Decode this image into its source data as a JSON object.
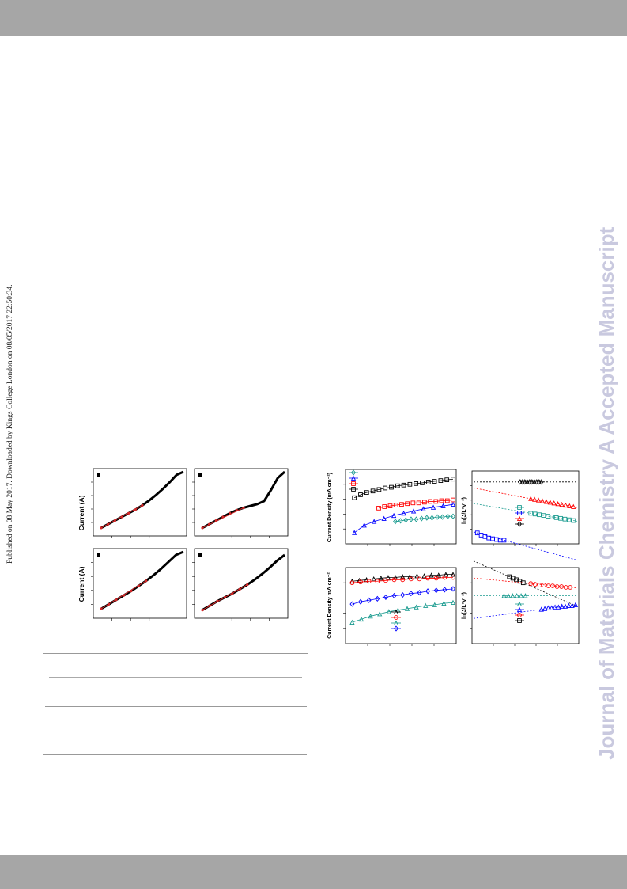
{
  "watermark": "Journal of Materials Chemistry A Accepted Manuscript",
  "published_note": "Published on 08 May 2017. Downloaded by Kings College London on 08/05/2017 22:50:34.",
  "colors": {
    "bar": "#a6a6a6",
    "watermark": "#c9c9df",
    "fit_line": "#d62728",
    "black": "#000000",
    "red": "#ff0000",
    "blue": "#0000ff",
    "teal": "#1a9b8f"
  },
  "left_panel": {
    "ylabel_top": "Current (A)",
    "ylabel_bottom": "Current (A)"
  },
  "right_panel": {
    "ylabel_top_left": "Current Density (mA cm⁻²)",
    "ylabel_bottom_left": "Current Density mA cm⁻²",
    "ylabel_right": "ln(J/L³V⁻²)"
  },
  "chart_data": [
    {
      "type": "line",
      "panel": "a-top-left",
      "series": [
        {
          "values": [
            0.08,
            0.14,
            0.2,
            0.26,
            0.32,
            0.38,
            0.45,
            0.53,
            0.62,
            0.72,
            0.83,
            0.95,
            1.0
          ]
        }
      ]
    },
    {
      "type": "line",
      "panel": "a-top-right",
      "series": [
        {
          "values": [
            0.08,
            0.14,
            0.2,
            0.26,
            0.32,
            0.37,
            0.41,
            0.44,
            0.47,
            0.52,
            0.7,
            0.9,
            1.0
          ]
        }
      ]
    },
    {
      "type": "line",
      "panel": "a-bottom-left",
      "series": [
        {
          "values": [
            0.1,
            0.17,
            0.24,
            0.31,
            0.38,
            0.46,
            0.54,
            0.63,
            0.73,
            0.84,
            0.95,
            1.0
          ]
        }
      ]
    },
    {
      "type": "line",
      "panel": "a-bottom-right",
      "series": [
        {
          "values": [
            0.08,
            0.15,
            0.22,
            0.28,
            0.34,
            0.41,
            0.48,
            0.56,
            0.65,
            0.75,
            0.86,
            0.95
          ]
        }
      ]
    },
    {
      "type": "scatter",
      "panel": "b-top-left",
      "series": [
        {
          "color": "black",
          "values": [
            0.62,
            0.66,
            0.69,
            0.71,
            0.73,
            0.75,
            0.76,
            0.78,
            0.79,
            0.8,
            0.81,
            0.82,
            0.83,
            0.84,
            0.85,
            0.86,
            0.87
          ]
        },
        {
          "color": "red",
          "values": [
            0.48,
            0.5,
            0.51,
            0.52,
            0.53,
            0.54,
            0.55,
            0.55,
            0.56,
            0.57,
            0.57,
            0.58,
            0.58,
            0.59
          ]
        },
        {
          "color": "blue",
          "values": [
            0.15,
            0.25,
            0.3,
            0.34,
            0.38,
            0.41,
            0.44,
            0.47,
            0.49,
            0.51,
            0.53
          ]
        },
        {
          "color": "teal",
          "values": [
            0.3,
            0.31,
            0.32,
            0.33,
            0.33,
            0.34,
            0.35,
            0.35,
            0.36,
            0.36,
            0.37,
            0.37
          ]
        }
      ]
    },
    {
      "type": "scatter",
      "panel": "b-top-right",
      "series": [
        {
          "color": "black",
          "values": [
            0.85,
            0.85,
            0.85,
            0.85,
            0.85,
            0.85,
            0.85,
            0.85,
            0.85,
            0.85
          ]
        },
        {
          "color": "red",
          "values": [
            0.62,
            0.61,
            0.6,
            0.59,
            0.58,
            0.57,
            0.56,
            0.55,
            0.54,
            0.53,
            0.52,
            0.51
          ]
        },
        {
          "color": "teal",
          "values": [
            0.42,
            0.41,
            0.4,
            0.39,
            0.38,
            0.37,
            0.36,
            0.35,
            0.34,
            0.33,
            0.32
          ]
        },
        {
          "color": "blue",
          "values": [
            0.15,
            0.12,
            0.1,
            0.08,
            0.07,
            0.06,
            0.05,
            0.05
          ]
        }
      ]
    },
    {
      "type": "scatter",
      "panel": "b-bottom-left",
      "series": [
        {
          "color": "black",
          "values": [
            0.82,
            0.83,
            0.84,
            0.85,
            0.86,
            0.87,
            0.87,
            0.88,
            0.88,
            0.89,
            0.89,
            0.9,
            0.9,
            0.91,
            0.91
          ]
        },
        {
          "color": "red",
          "values": [
            0.8,
            0.81,
            0.82,
            0.82,
            0.83,
            0.84,
            0.84,
            0.85,
            0.85,
            0.86,
            0.86,
            0.87,
            0.87
          ]
        },
        {
          "color": "blue",
          "values": [
            0.52,
            0.55,
            0.57,
            0.59,
            0.61,
            0.63,
            0.64,
            0.66,
            0.67,
            0.69,
            0.7,
            0.71,
            0.72
          ]
        },
        {
          "color": "teal",
          "values": [
            0.28,
            0.32,
            0.36,
            0.39,
            0.42,
            0.44,
            0.46,
            0.48,
            0.5,
            0.51,
            0.53,
            0.54
          ]
        }
      ]
    },
    {
      "type": "scatter",
      "panel": "b-bottom-right",
      "series": [
        {
          "color": "black",
          "values": [
            0.88,
            0.86,
            0.84,
            0.82,
            0.8
          ]
        },
        {
          "color": "red",
          "values": [
            0.79,
            0.78,
            0.77,
            0.77,
            0.76,
            0.76,
            0.75,
            0.75,
            0.74,
            0.74
          ]
        },
        {
          "color": "teal",
          "values": [
            0.63,
            0.63,
            0.63,
            0.63,
            0.63,
            0.63
          ]
        },
        {
          "color": "blue",
          "values": [
            0.45,
            0.46,
            0.47,
            0.47,
            0.48,
            0.48,
            0.49,
            0.49,
            0.5,
            0.5,
            0.51
          ]
        }
      ]
    }
  ]
}
